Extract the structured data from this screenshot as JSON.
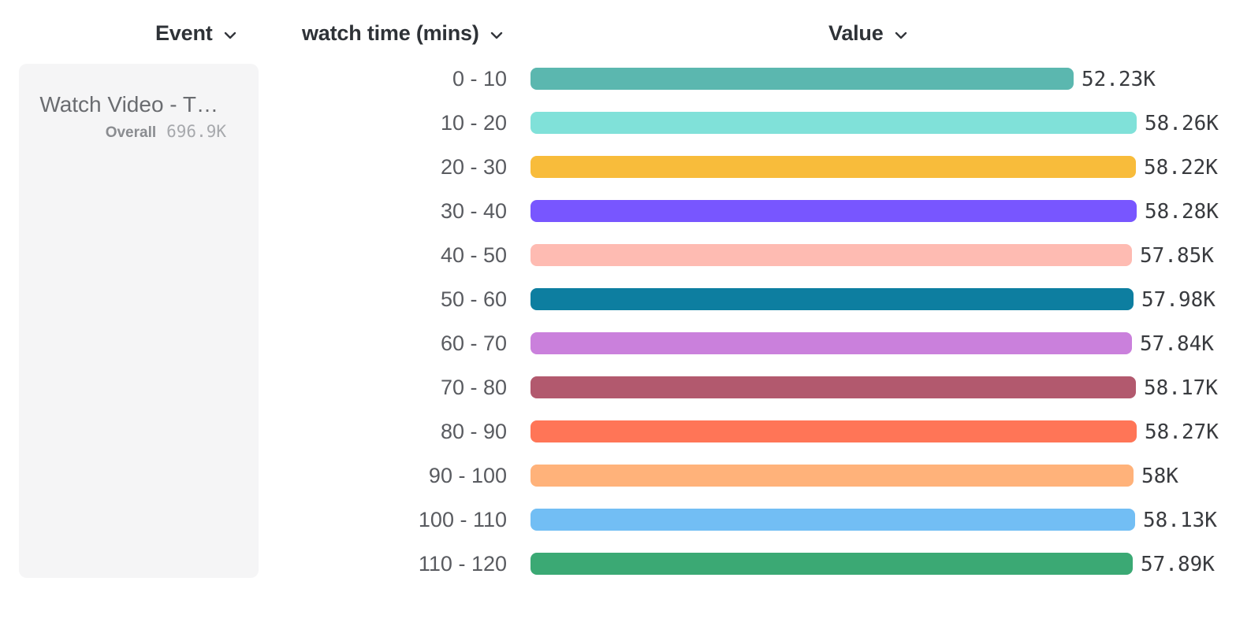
{
  "header": {
    "event_label": "Event",
    "breakdown_label": "watch time (mins)",
    "value_label": "Value"
  },
  "event_panel": {
    "name": "Watch Video - T…",
    "overall_label": "Overall",
    "overall_value": "696.9K"
  },
  "chart_data": {
    "type": "bar",
    "orientation": "horizontal",
    "title": "",
    "xlabel": "Value",
    "ylabel": "watch time (mins)",
    "series_name": "Watch Video - T…",
    "overall_total": "696.9K",
    "x_max": 58280,
    "grid": false,
    "legend_position": "left",
    "categories": [
      "0 - 10",
      "10 - 20",
      "20 - 30",
      "30 - 40",
      "40 - 50",
      "50 - 60",
      "60 - 70",
      "70 - 80",
      "80 - 90",
      "90 - 100",
      "100 - 110",
      "110 - 120"
    ],
    "values": [
      52230,
      58260,
      58220,
      58280,
      57850,
      57980,
      57840,
      58170,
      58270,
      58000,
      58130,
      57890
    ],
    "value_labels": [
      "52.23K",
      "58.26K",
      "58.22K",
      "58.28K",
      "57.85K",
      "57.98K",
      "57.84K",
      "58.17K",
      "58.27K",
      "58K",
      "58.13K",
      "57.89K"
    ],
    "colors": [
      "#5BB7AF",
      "#80E1D9",
      "#F8BC3B",
      "#7856FF",
      "#FEBBB2",
      "#0D7EA0",
      "#CA80DC",
      "#B2596E",
      "#FF7557",
      "#FFB27A",
      "#72BEF4",
      "#3BA974"
    ]
  }
}
